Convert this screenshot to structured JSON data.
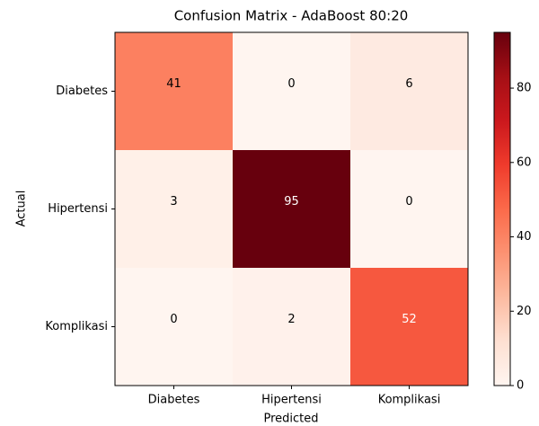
{
  "chart_data": {
    "type": "heatmap",
    "title": "Confusion Matrix - AdaBoost 80:20",
    "x_label": "Predicted",
    "y_label": "Actual",
    "x_categories": [
      "Diabetes",
      "Hipertensi",
      "Komplikasi"
    ],
    "y_categories": [
      "Diabetes",
      "Hipertensi",
      "Komplikasi"
    ],
    "values": [
      [
        41,
        0,
        6
      ],
      [
        3,
        95,
        0
      ],
      [
        0,
        2,
        52
      ]
    ],
    "colormap": "Reds",
    "clim": [
      0,
      95
    ],
    "cticks": [
      0,
      20,
      40,
      60,
      80
    ]
  }
}
